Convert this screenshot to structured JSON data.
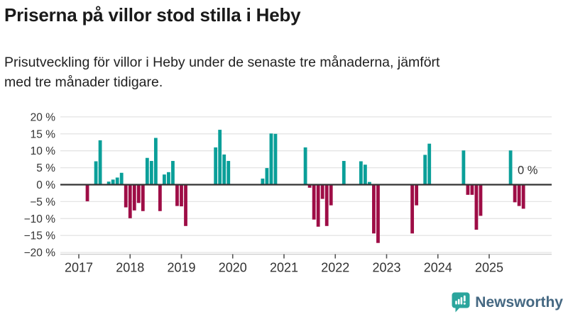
{
  "header": {
    "title": "Priserna på villor stod stilla i Heby",
    "subtitle": "Prisutveckling för villor i Heby under de senaste tre månaderna, jämfört\nmed tre månader tidigare."
  },
  "footer": {
    "brand": "Newsworthy"
  },
  "chart_data": {
    "type": "bar",
    "title": "Priserna på villor stod stilla i Heby",
    "subtitle": "Prisutveckling för villor i Heby under de senaste tre månaderna, jämfört med tre månader tidigare.",
    "unit": "%",
    "ylim": [
      -20,
      20
    ],
    "grid": true,
    "y_ticks": [
      {
        "value": 20,
        "label": "20 %"
      },
      {
        "value": 15,
        "label": "15 %"
      },
      {
        "value": 10,
        "label": "10 %"
      },
      {
        "value": 5,
        "label": "5 %"
      },
      {
        "value": 0,
        "label": "0 %"
      },
      {
        "value": -5,
        "label": "−5 %"
      },
      {
        "value": -10,
        "label": "−10 %"
      },
      {
        "value": -15,
        "label": "−15 %"
      },
      {
        "value": -20,
        "label": "−20 %"
      }
    ],
    "x_ticks": [
      {
        "value": 2017,
        "label": "2017"
      },
      {
        "value": 2018,
        "label": "2018"
      },
      {
        "value": 2019,
        "label": "2019"
      },
      {
        "value": 2020,
        "label": "2020"
      },
      {
        "value": 2021,
        "label": "2021"
      },
      {
        "value": 2022,
        "label": "2022"
      },
      {
        "value": 2023,
        "label": "2023"
      },
      {
        "value": 2024,
        "label": "2024"
      },
      {
        "value": 2025,
        "label": "2025"
      }
    ],
    "annotation": {
      "label": "0 %",
      "month": "2025-10",
      "value": 0
    },
    "colors": {
      "positive": "#0a9f99",
      "negative": "#9e0d46"
    },
    "points": [
      {
        "month": "2017-03",
        "value": -4.9
      },
      {
        "month": "2017-05",
        "value": 6.9
      },
      {
        "month": "2017-06",
        "value": 13.1
      },
      {
        "month": "2017-08",
        "value": 0.9
      },
      {
        "month": "2017-09",
        "value": 1.5
      },
      {
        "month": "2017-10",
        "value": 2.1
      },
      {
        "month": "2017-11",
        "value": 3.5
      },
      {
        "month": "2017-12",
        "value": -6.7
      },
      {
        "month": "2018-01",
        "value": -9.9
      },
      {
        "month": "2018-02",
        "value": -7.6
      },
      {
        "month": "2018-03",
        "value": -5.4
      },
      {
        "month": "2018-04",
        "value": -7.8
      },
      {
        "month": "2018-05",
        "value": 7.9
      },
      {
        "month": "2018-06",
        "value": 7.0
      },
      {
        "month": "2018-07",
        "value": 13.8
      },
      {
        "month": "2018-08",
        "value": -7.8
      },
      {
        "month": "2018-09",
        "value": 3.0
      },
      {
        "month": "2018-10",
        "value": 3.7
      },
      {
        "month": "2018-11",
        "value": 7.0
      },
      {
        "month": "2018-12",
        "value": -6.3
      },
      {
        "month": "2019-01",
        "value": -6.4
      },
      {
        "month": "2019-02",
        "value": -12.2
      },
      {
        "month": "2019-09",
        "value": 11.0
      },
      {
        "month": "2019-10",
        "value": 16.2
      },
      {
        "month": "2019-11",
        "value": 8.9
      },
      {
        "month": "2019-12",
        "value": 7.0
      },
      {
        "month": "2020-08",
        "value": 1.8
      },
      {
        "month": "2020-09",
        "value": 4.9
      },
      {
        "month": "2020-10",
        "value": 15.1
      },
      {
        "month": "2020-11",
        "value": 15.0
      },
      {
        "month": "2021-06",
        "value": 11.0
      },
      {
        "month": "2021-07",
        "value": -0.9
      },
      {
        "month": "2021-08",
        "value": -10.3
      },
      {
        "month": "2021-09",
        "value": -12.4
      },
      {
        "month": "2021-10",
        "value": -4.2
      },
      {
        "month": "2021-11",
        "value": -12.2
      },
      {
        "month": "2021-12",
        "value": -6.1
      },
      {
        "month": "2022-03",
        "value": 7.0
      },
      {
        "month": "2022-07",
        "value": 6.9
      },
      {
        "month": "2022-08",
        "value": 5.9
      },
      {
        "month": "2022-09",
        "value": 0.8
      },
      {
        "month": "2022-10",
        "value": -14.4
      },
      {
        "month": "2022-11",
        "value": -17.2
      },
      {
        "month": "2023-07",
        "value": -14.4
      },
      {
        "month": "2023-08",
        "value": -6.1
      },
      {
        "month": "2023-10",
        "value": 8.8
      },
      {
        "month": "2023-11",
        "value": 12.1
      },
      {
        "month": "2024-07",
        "value": 10.1
      },
      {
        "month": "2024-08",
        "value": -3.0
      },
      {
        "month": "2024-09",
        "value": -3.0
      },
      {
        "month": "2024-10",
        "value": -13.3
      },
      {
        "month": "2024-11",
        "value": -9.2
      },
      {
        "month": "2025-06",
        "value": 10.1
      },
      {
        "month": "2025-07",
        "value": -5.2
      },
      {
        "month": "2025-08",
        "value": -6.3
      },
      {
        "month": "2025-09",
        "value": -7.1
      },
      {
        "month": "2025-10",
        "value": 0.0
      }
    ]
  }
}
